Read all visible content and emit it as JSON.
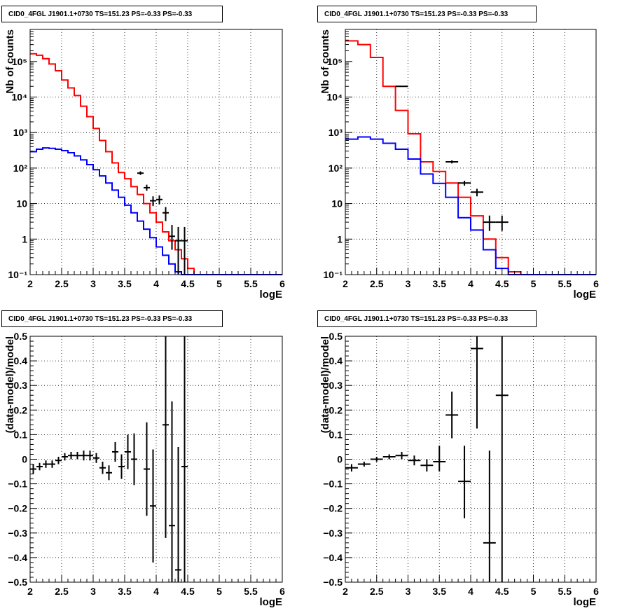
{
  "pads": [
    {
      "title": "CID0_4FGL J1901.1+0730 TS=151.23 PS=-0.33 PS=-0.33",
      "chart_data": {
        "type": "line",
        "xlabel": "logE",
        "ylabel": "Nb of counts",
        "xlim": [
          2,
          6
        ],
        "ylim": [
          0.1,
          800000
        ],
        "yscale": "log",
        "grid": true,
        "x_ticks": [
          "2",
          "2.5",
          "3",
          "3.5",
          "4",
          "4.5",
          "5",
          "5.5",
          "6"
        ],
        "y_ticks": [
          "10⁻¹",
          "1",
          "10",
          "10²",
          "10³",
          "10⁴",
          "10⁵"
        ],
        "bin_edges": [
          2.0,
          2.1,
          2.2,
          2.3,
          2.4,
          2.5,
          2.6,
          2.7,
          2.8,
          2.9,
          3.0,
          3.1,
          3.2,
          3.3,
          3.4,
          3.5,
          3.6,
          3.7,
          3.8,
          3.9,
          4.0,
          4.1,
          4.2,
          4.3,
          4.4,
          4.5,
          4.6,
          4.7,
          4.8,
          4.9,
          5.0,
          5.1,
          5.2,
          5.3,
          5.4,
          5.5,
          5.6,
          5.7,
          5.8,
          5.9,
          6.0
        ],
        "series": [
          {
            "color": "#ff0000",
            "values": [
              165000,
              150000,
              120000,
              85000,
              55000,
              30000,
              18000,
              11000,
              5500,
              2800,
              1300,
              600,
              290,
              140,
              75,
              50,
              30,
              18,
              10,
              5.5,
              3,
              1.6,
              0.9,
              0.5,
              0.28,
              0.15,
              0.1,
              0.1,
              0.1,
              0.1,
              0.1,
              0.1,
              0.1,
              0.1,
              0.1,
              0.1,
              0.1,
              0.1,
              0.1,
              0.1
            ]
          },
          {
            "color": "#0000ff",
            "values": [
              290,
              340,
              370,
              360,
              340,
              310,
              270,
              220,
              170,
              125,
              90,
              60,
              38,
              24,
              15,
              9,
              5.5,
              3.2,
              1.9,
              1.1,
              0.6,
              0.35,
              0.2,
              0.12,
              0.1,
              0.1,
              0.1,
              0.1,
              0.1,
              0.1,
              0.1,
              0.1,
              0.1,
              0.1,
              0.1,
              0.1,
              0.1,
              0.1,
              0.1,
              0.1
            ]
          },
          {
            "color": "#000000",
            "marker": "errorbar",
            "points": [
              {
                "x": 3.75,
                "y": 72,
                "ylo": 64,
                "yhi": 81
              },
              {
                "x": 3.85,
                "y": 28,
                "ylo": 23,
                "yhi": 34
              },
              {
                "x": 3.95,
                "y": 12,
                "ylo": 8.5,
                "yhi": 16
              },
              {
                "x": 4.05,
                "y": 13,
                "ylo": 9.5,
                "yhi": 17
              },
              {
                "x": 4.15,
                "y": 5.5,
                "ylo": 3.2,
                "yhi": 8
              },
              {
                "x": 4.25,
                "y": 1.2,
                "ylo": 0.5,
                "yhi": 2.5
              },
              {
                "x": 4.35,
                "y": 0.9,
                "ylo": 0.1,
                "yhi": 2.2
              },
              {
                "x": 4.45,
                "y": 0.9,
                "ylo": 0.1,
                "yhi": 2.2
              }
            ]
          }
        ]
      }
    },
    {
      "title": "CID0_4FGL J1901.1+0730 TS=151.23 PS=-0.33 PS=-0.33",
      "chart_data": {
        "type": "line",
        "xlabel": "logE",
        "ylabel": "Nb of counts",
        "xlim": [
          2,
          6
        ],
        "ylim": [
          0.1,
          800000
        ],
        "yscale": "log",
        "grid": true,
        "x_ticks": [
          "2",
          "2.5",
          "3",
          "3.5",
          "4",
          "4.5",
          "5",
          "5.5",
          "6"
        ],
        "y_ticks": [
          "10⁻¹",
          "1",
          "10",
          "10²",
          "10³",
          "10⁴",
          "10⁵"
        ],
        "bin_edges": [
          2.0,
          2.2,
          2.4,
          2.6,
          2.8,
          3.0,
          3.2,
          3.4,
          3.6,
          3.8,
          4.0,
          4.2,
          4.4,
          4.6,
          4.8,
          5.0,
          5.2,
          5.4,
          5.6,
          5.8,
          6.0
        ],
        "series": [
          {
            "color": "#ff0000",
            "values": [
              380000,
              300000,
              130000,
              20000,
              4200,
              920,
              150,
              80,
              38,
              15,
              4.5,
              1,
              0.3,
              0.12,
              0.1,
              0.1,
              0.1,
              0.1,
              0.1,
              0.1
            ]
          },
          {
            "color": "#0000ff",
            "values": [
              650,
              750,
              650,
              500,
              340,
              180,
              68,
              37,
              15,
              4,
              1.8,
              0.5,
              0.15,
              0.1,
              0.1,
              0.1,
              0.1,
              0.1,
              0.1,
              0.1
            ]
          },
          {
            "color": "#000000",
            "marker": "errorbar",
            "points": [
              {
                "x": 2.9,
                "y": 20000,
                "ylo": 19500,
                "yhi": 20500
              },
              {
                "x": 3.7,
                "y": 150,
                "ylo": 135,
                "yhi": 165
              },
              {
                "x": 3.9,
                "y": 38,
                "ylo": 32,
                "yhi": 44
              },
              {
                "x": 4.1,
                "y": 21,
                "ylo": 16,
                "yhi": 26
              },
              {
                "x": 4.3,
                "y": 3,
                "ylo": 1.7,
                "yhi": 4.6
              },
              {
                "x": 4.5,
                "y": 3,
                "ylo": 1.7,
                "yhi": 4.6
              }
            ]
          }
        ]
      }
    },
    {
      "title": "CID0_4FGL J1901.1+0730 TS=151.23 PS=-0.33 PS=-0.33",
      "chart_data": {
        "type": "scatter",
        "xlabel": "logE",
        "ylabel": "(data-model)/model",
        "xlim": [
          2,
          6
        ],
        "ylim": [
          -0.5,
          0.5
        ],
        "grid": true,
        "x_ticks": [
          "2",
          "2.5",
          "3",
          "3.5",
          "4",
          "4.5",
          "5",
          "5.5",
          "6"
        ],
        "y_ticks": [
          "−0.5",
          "−0.4",
          "−0.3",
          "−0.2",
          "−0.1",
          "0",
          "0.1",
          "0.2",
          "0.3",
          "0.4",
          "0.5"
        ],
        "xerr": 0.05,
        "series": [
          {
            "color": "#000000",
            "marker": "errorbar",
            "points": [
              {
                "x": 2.05,
                "y": -0.04,
                "ylo": -0.06,
                "yhi": -0.02
              },
              {
                "x": 2.15,
                "y": -0.03,
                "ylo": -0.045,
                "yhi": -0.015
              },
              {
                "x": 2.25,
                "y": -0.02,
                "ylo": -0.035,
                "yhi": -0.005
              },
              {
                "x": 2.35,
                "y": -0.02,
                "ylo": -0.035,
                "yhi": -0.005
              },
              {
                "x": 2.45,
                "y": -0.005,
                "ylo": -0.02,
                "yhi": 0.01
              },
              {
                "x": 2.55,
                "y": 0.01,
                "ylo": -0.005,
                "yhi": 0.025
              },
              {
                "x": 2.65,
                "y": 0.015,
                "ylo": 0,
                "yhi": 0.03
              },
              {
                "x": 2.75,
                "y": 0.015,
                "ylo": 0,
                "yhi": 0.03
              },
              {
                "x": 2.85,
                "y": 0.015,
                "ylo": -0.005,
                "yhi": 0.035
              },
              {
                "x": 2.95,
                "y": 0.015,
                "ylo": -0.005,
                "yhi": 0.035
              },
              {
                "x": 3.05,
                "y": 0.005,
                "ylo": -0.015,
                "yhi": 0.025
              },
              {
                "x": 3.15,
                "y": -0.035,
                "ylo": -0.06,
                "yhi": -0.01
              },
              {
                "x": 3.25,
                "y": -0.055,
                "ylo": -0.085,
                "yhi": -0.025
              },
              {
                "x": 3.35,
                "y": 0.03,
                "ylo": -0.01,
                "yhi": 0.07
              },
              {
                "x": 3.45,
                "y": -0.03,
                "ylo": -0.08,
                "yhi": 0.02
              },
              {
                "x": 3.55,
                "y": 0.03,
                "ylo": -0.04,
                "yhi": 0.1
              },
              {
                "x": 3.65,
                "y": 0,
                "ylo": -0.105,
                "yhi": 0.105
              },
              {
                "x": 3.85,
                "y": -0.04,
                "ylo": -0.23,
                "yhi": 0.15
              },
              {
                "x": 3.95,
                "y": -0.19,
                "ylo": -0.42,
                "yhi": 0.04
              },
              {
                "x": 4.15,
                "y": 0.14,
                "ylo": -0.32,
                "yhi": 0.5
              },
              {
                "x": 4.25,
                "y": -0.27,
                "ylo": -0.5,
                "yhi": 0.235
              },
              {
                "x": 4.35,
                "y": -0.45,
                "ylo": -0.5,
                "yhi": 0.05
              },
              {
                "x": 4.45,
                "y": -0.03,
                "ylo": -0.5,
                "yhi": 0.5
              }
            ]
          }
        ]
      }
    },
    {
      "title": "CID0_4FGL J1901.1+0730 TS=151.23 PS=-0.33 PS=-0.33",
      "chart_data": {
        "type": "scatter",
        "xlabel": "logE",
        "ylabel": "(data-model)/model",
        "xlim": [
          2,
          6
        ],
        "ylim": [
          -0.5,
          0.5
        ],
        "grid": true,
        "x_ticks": [
          "2",
          "2.5",
          "3",
          "3.5",
          "4",
          "4.5",
          "5",
          "5.5",
          "6"
        ],
        "y_ticks": [
          "−0.5",
          "−0.4",
          "−0.3",
          "−0.2",
          "−0.1",
          "0",
          "0.1",
          "0.2",
          "0.3",
          "0.4",
          "0.5"
        ],
        "xerr": 0.1,
        "series": [
          {
            "color": "#000000",
            "marker": "errorbar",
            "points": [
              {
                "x": 2.1,
                "y": -0.035,
                "ylo": -0.05,
                "yhi": -0.02
              },
              {
                "x": 2.3,
                "y": -0.02,
                "ylo": -0.03,
                "yhi": -0.01
              },
              {
                "x": 2.5,
                "y": 0,
                "ylo": -0.01,
                "yhi": 0.01
              },
              {
                "x": 2.7,
                "y": 0.01,
                "ylo": 0,
                "yhi": 0.02
              },
              {
                "x": 2.9,
                "y": 0.015,
                "ylo": 0,
                "yhi": 0.03
              },
              {
                "x": 3.1,
                "y": -0.005,
                "ylo": -0.025,
                "yhi": 0.015
              },
              {
                "x": 3.3,
                "y": -0.025,
                "ylo": -0.05,
                "yhi": 0
              },
              {
                "x": 3.5,
                "y": -0.01,
                "ylo": -0.05,
                "yhi": 0.055
              },
              {
                "x": 3.7,
                "y": 0.18,
                "ylo": 0.085,
                "yhi": 0.275
              },
              {
                "x": 3.9,
                "y": -0.09,
                "ylo": -0.24,
                "yhi": 0.055
              },
              {
                "x": 4.1,
                "y": 0.45,
                "ylo": 0.125,
                "yhi": 0.5
              },
              {
                "x": 4.3,
                "y": -0.34,
                "ylo": -0.5,
                "yhi": 0.035
              },
              {
                "x": 4.5,
                "y": 0.26,
                "ylo": -0.5,
                "yhi": 0.5
              }
            ]
          }
        ]
      }
    }
  ]
}
